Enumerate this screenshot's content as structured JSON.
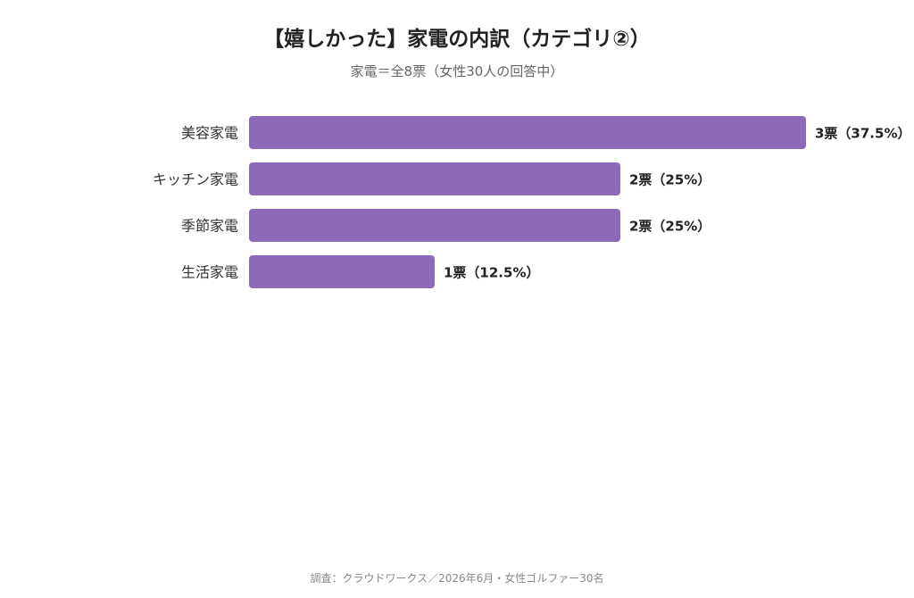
{
  "title": "【嬉しかった】家電の内訳（カテゴリ②）",
  "subtitle": "家電＝全8票（女性30人の回答中）",
  "footer": "調査：クラウドワークス／2026年6月・女性ゴルファー30名",
  "colors": {
    "bar": "#8b6bb7"
  },
  "chart_data": {
    "type": "bar",
    "orientation": "horizontal",
    "categories": [
      "美容家電",
      "キッチン家電",
      "季節家電",
      "生活家電"
    ],
    "values": [
      3,
      2,
      2,
      1
    ],
    "value_labels": [
      "3票（37.5%）",
      "2票（25%）",
      "2票（25%）",
      "1票（12.5%）"
    ],
    "title": "【嬉しかった】家電の内訳（カテゴリ②）",
    "subtitle": "家電＝全8票（女性30人の回答中）",
    "xlim": [
      0,
      3
    ],
    "grid": false,
    "legend": "none"
  }
}
